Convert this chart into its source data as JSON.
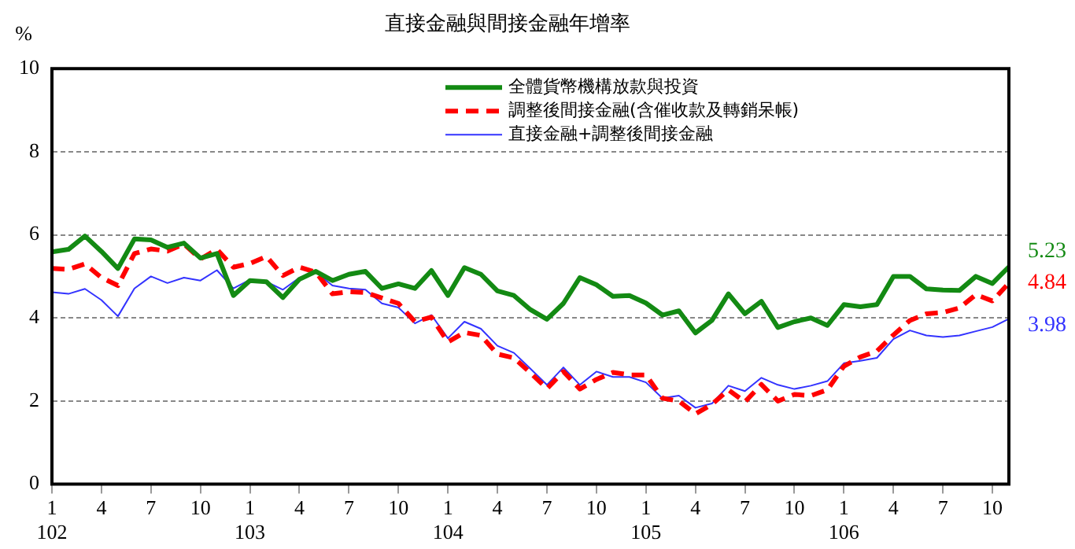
{
  "chart_data": {
    "type": "line",
    "title": "直接金融與間接金融年增率",
    "ylabel": "%",
    "categories": [
      "1\n102",
      null,
      null,
      "4",
      null,
      null,
      "7",
      null,
      null,
      "10",
      null,
      null,
      "1\n103",
      null,
      null,
      "4",
      null,
      null,
      "7",
      null,
      null,
      "10",
      null,
      null,
      "1\n104",
      null,
      null,
      "4",
      null,
      null,
      "7",
      null,
      null,
      "10",
      null,
      null,
      "1\n105",
      null,
      null,
      "4",
      null,
      null,
      "7",
      null,
      null,
      "10",
      null,
      null,
      "1\n106",
      null,
      null,
      "4",
      null,
      null,
      "7",
      null,
      null,
      "10",
      null
    ],
    "series": [
      {
        "name": "全體貨幣機構放款與投資",
        "color": "#138a13",
        "line_style": "solid",
        "values": [
          5.59,
          5.65,
          5.97,
          5.6,
          5.19,
          5.9,
          5.88,
          5.7,
          5.8,
          5.44,
          5.55,
          4.54,
          4.9,
          4.87,
          4.49,
          4.93,
          5.12,
          4.9,
          5.05,
          5.12,
          4.71,
          4.82,
          4.71,
          5.14,
          4.54,
          5.21,
          5.05,
          4.65,
          4.54,
          4.2,
          3.97,
          4.35,
          4.97,
          4.8,
          4.52,
          4.54,
          4.36,
          4.07,
          4.17,
          3.64,
          3.94,
          4.58,
          4.1,
          4.4,
          3.77,
          3.91,
          4.0,
          3.82,
          4.32,
          4.27,
          4.32,
          5.0,
          5.0,
          4.7,
          4.67,
          4.66,
          5.0,
          4.83,
          5.23
        ],
        "value_labels": [
          null,
          null,
          null,
          null,
          null,
          null,
          null,
          null,
          null,
          null,
          null,
          null,
          null,
          null,
          null,
          null,
          null,
          null,
          null,
          null,
          null,
          null,
          null,
          null,
          null,
          null,
          null,
          null,
          null,
          null,
          null,
          null,
          null,
          null,
          null,
          null,
          null,
          null,
          null,
          null,
          null,
          null,
          null,
          null,
          null,
          null,
          null,
          null,
          null,
          null,
          null,
          null,
          null,
          null,
          null,
          null,
          null,
          null,
          "5.23"
        ]
      },
      {
        "name": "調整後間接金融(含催收款及轉銷呆帳)",
        "color": "#ff0000",
        "line_style": "dashed",
        "values": [
          5.19,
          5.17,
          5.3,
          4.97,
          4.78,
          5.55,
          5.66,
          5.61,
          5.78,
          5.42,
          5.65,
          5.22,
          5.31,
          5.48,
          5.02,
          5.22,
          5.1,
          4.58,
          4.63,
          4.61,
          4.48,
          4.35,
          3.91,
          4.02,
          3.42,
          3.65,
          3.58,
          3.13,
          3.04,
          2.68,
          2.3,
          2.71,
          2.29,
          2.52,
          2.69,
          2.63,
          2.63,
          2.07,
          2.0,
          1.69,
          1.92,
          2.27,
          1.98,
          2.4,
          2.0,
          2.16,
          2.13,
          2.27,
          2.84,
          3.06,
          3.2,
          3.59,
          3.94,
          4.1,
          4.13,
          4.24,
          4.56,
          4.41,
          4.84
        ],
        "value_labels": [
          null,
          null,
          null,
          null,
          null,
          null,
          null,
          null,
          null,
          null,
          null,
          null,
          null,
          null,
          null,
          null,
          null,
          null,
          null,
          null,
          null,
          null,
          null,
          null,
          null,
          null,
          null,
          null,
          null,
          null,
          null,
          null,
          null,
          null,
          null,
          null,
          null,
          null,
          null,
          null,
          null,
          null,
          null,
          null,
          null,
          null,
          null,
          null,
          null,
          null,
          null,
          null,
          null,
          null,
          null,
          null,
          null,
          null,
          "4.84"
        ]
      },
      {
        "name": "直接金融+調整後間接金融",
        "color": "#3333ff",
        "line_style": "solid",
        "values": [
          4.62,
          4.58,
          4.7,
          4.43,
          4.04,
          4.71,
          5.0,
          4.84,
          4.97,
          4.9,
          5.15,
          4.71,
          4.92,
          4.87,
          4.68,
          4.97,
          5.1,
          4.78,
          4.71,
          4.68,
          4.35,
          4.25,
          3.87,
          4.07,
          3.51,
          3.91,
          3.74,
          3.33,
          3.16,
          2.78,
          2.39,
          2.81,
          2.39,
          2.71,
          2.58,
          2.58,
          2.45,
          2.07,
          2.13,
          1.84,
          1.94,
          2.37,
          2.24,
          2.56,
          2.39,
          2.29,
          2.37,
          2.48,
          2.91,
          2.97,
          3.04,
          3.49,
          3.7,
          3.58,
          3.54,
          3.58,
          3.68,
          3.78,
          3.98
        ],
        "value_labels": [
          null,
          null,
          null,
          null,
          null,
          null,
          null,
          null,
          null,
          null,
          null,
          null,
          null,
          null,
          null,
          null,
          null,
          null,
          null,
          null,
          null,
          null,
          null,
          null,
          null,
          null,
          null,
          null,
          null,
          null,
          null,
          null,
          null,
          null,
          null,
          null,
          null,
          null,
          null,
          null,
          null,
          null,
          null,
          null,
          null,
          null,
          null,
          null,
          null,
          null,
          null,
          null,
          null,
          null,
          null,
          null,
          null,
          null,
          "3.98"
        ]
      }
    ],
    "ylim": [
      0,
      10
    ],
    "yticks": [
      0,
      2,
      4,
      6,
      8,
      10
    ],
    "grid": "y",
    "legend": "top right",
    "marker": "none"
  }
}
